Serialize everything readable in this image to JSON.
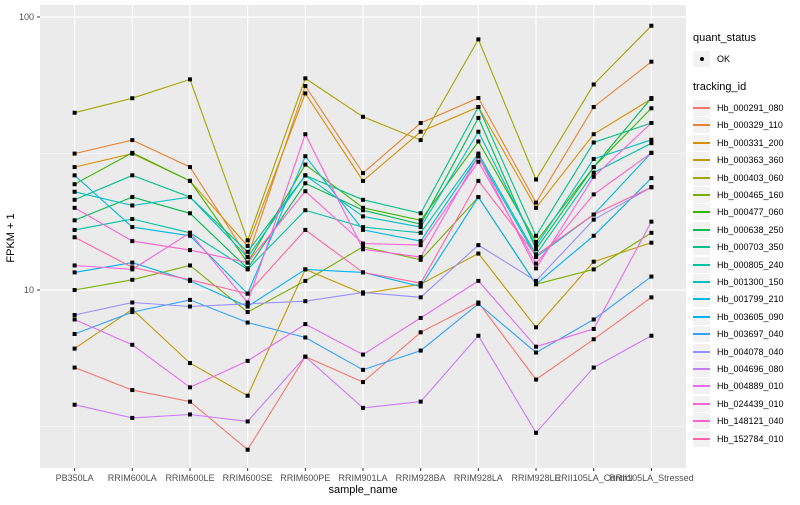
{
  "legend": {
    "quant_title": "quant_status",
    "quant_items": [
      {
        "label": "OK"
      }
    ],
    "tracking_title": "tracking_id"
  },
  "chart_data": {
    "type": "line",
    "title": "",
    "xlabel": "sample_name",
    "ylabel": "FPKM + 1",
    "y_scale": "log10",
    "ylim": [
      2.2,
      110
    ],
    "y_major_ticks": [
      100,
      10
    ],
    "y_minor_gridlines": [
      31.623,
      3.1623
    ],
    "grid": true,
    "legend_position": "right",
    "panel_background": "#EBEBEB",
    "gridline_color": "#FFFFFF",
    "tick_label_color": "#4D4D4D",
    "point_color": "#000000",
    "categories": [
      "PB350LA",
      "RRIM600LA",
      "RRIM600LE",
      "RRIM600SE",
      "RRIM600PE",
      "RRIM901LA",
      "RRIM928BA",
      "RRIM928LA",
      "RRIM928LE",
      "RRII105LA_Control",
      "RRII105LA_Stressed"
    ],
    "series": [
      {
        "name": "Hb_000291_080",
        "color": "#F8766D",
        "values": [
          5.2,
          4.3,
          3.9,
          2.6,
          5.7,
          4.6,
          7.0,
          9.0,
          4.7,
          6.6,
          9.4
        ]
      },
      {
        "name": "Hb_000329_110",
        "color": "#EA8331",
        "values": [
          31.6,
          35.4,
          28.2,
          13.2,
          55.9,
          26.8,
          40.9,
          50.5,
          20.9,
          46.8,
          68.6
        ]
      },
      {
        "name": "Hb_000331_200",
        "color": "#D89000",
        "values": [
          28.2,
          31.6,
          25.1,
          14.5,
          52.5,
          25.1,
          38.0,
          46.8,
          20.0,
          37.2,
          50.1
        ]
      },
      {
        "name": "Hb_000363_360",
        "color": "#C09B00",
        "values": [
          6.1,
          8.5,
          5.4,
          4.1,
          11.9,
          9.7,
          10.5,
          13.6,
          7.3,
          12.7,
          14.9
        ]
      },
      {
        "name": "Hb_000403_060",
        "color": "#A3A500",
        "values": [
          44.6,
          50.4,
          59.1,
          15.2,
          59.6,
          43.1,
          35.4,
          82.8,
          25.4,
          56.6,
          92.9
        ]
      },
      {
        "name": "Hb_000465_160",
        "color": "#7CAE00",
        "values": [
          10.0,
          10.9,
          12.3,
          8.3,
          10.8,
          14.4,
          12.9,
          21.9,
          10.5,
          11.9,
          16.2
        ]
      },
      {
        "name": "Hb_000477_060",
        "color": "#39B600",
        "values": [
          24.4,
          31.8,
          25.1,
          12.6,
          28.8,
          20.0,
          18.0,
          35.0,
          15.0,
          28.2,
          46.3
        ]
      },
      {
        "name": "Hb_000638_250",
        "color": "#00BB4E",
        "values": [
          18.0,
          21.9,
          19.1,
          12.0,
          24.6,
          19.6,
          17.4,
          42.7,
          14.1,
          28.2,
          50.5
        ]
      },
      {
        "name": "Hb_000703_350",
        "color": "#00C087",
        "values": [
          21.4,
          26.3,
          21.9,
          13.8,
          26.3,
          21.4,
          19.1,
          46.8,
          15.8,
          34.7,
          40.9
        ]
      },
      {
        "name": "Hb_000805_240",
        "color": "#00C1A3",
        "values": [
          16.6,
          18.2,
          16.2,
          11.9,
          19.6,
          17.0,
          16.2,
          31.6,
          13.5,
          26.9,
          34.5
        ]
      },
      {
        "name": "Hb_001300_150",
        "color": "#00BFC4",
        "values": [
          22.9,
          20.4,
          21.9,
          13.2,
          26.3,
          18.6,
          17.0,
          38.0,
          14.5,
          30.2,
          35.5
        ]
      },
      {
        "name": "Hb_001799_210",
        "color": "#00BAE0",
        "values": [
          26.3,
          17.0,
          15.8,
          9.7,
          30.9,
          16.6,
          15.1,
          30.9,
          13.2,
          18.9,
          31.8
        ]
      },
      {
        "name": "Hb_003605_090",
        "color": "#00B0F6",
        "values": [
          11.6,
          12.6,
          10.8,
          8.7,
          11.9,
          11.6,
          10.3,
          21.9,
          10.5,
          15.8,
          25.7
        ]
      },
      {
        "name": "Hb_003697_040",
        "color": "#35A2FF",
        "values": [
          6.9,
          8.3,
          9.2,
          7.6,
          6.7,
          5.1,
          6.0,
          8.9,
          5.9,
          7.8,
          11.2
        ]
      },
      {
        "name": "Hb_004078_040",
        "color": "#9590FF",
        "values": [
          8.1,
          9.0,
          8.7,
          8.9,
          9.1,
          9.8,
          9.4,
          14.6,
          10.8,
          18.1,
          23.8
        ]
      },
      {
        "name": "Hb_004696_080",
        "color": "#C77CFF",
        "values": [
          3.8,
          3.4,
          3.5,
          3.3,
          5.7,
          3.7,
          3.9,
          6.8,
          3.0,
          5.2,
          6.8
        ]
      },
      {
        "name": "Hb_004889_010",
        "color": "#E76BF3",
        "values": [
          7.8,
          6.3,
          4.4,
          5.5,
          7.5,
          5.8,
          7.9,
          10.8,
          6.2,
          7.2,
          17.8
        ]
      },
      {
        "name": "Hb_024439_010",
        "color": "#FA62DB",
        "values": [
          12.3,
          11.9,
          16.2,
          9.0,
          37.2,
          14.1,
          13.2,
          30.9,
          12.0,
          26.0,
          40.9
        ]
      },
      {
        "name": "Hb_148121_040",
        "color": "#FF61CC",
        "values": [
          20.0,
          15.1,
          14.0,
          12.6,
          23.0,
          14.8,
          14.6,
          29.5,
          12.5,
          22.4,
          31.8
        ]
      },
      {
        "name": "Hb_152784_010",
        "color": "#FF67A4",
        "values": [
          15.6,
          12.1,
          10.9,
          9.7,
          16.6,
          11.6,
          10.6,
          25.1,
          13.4,
          18.9,
          23.8
        ]
      }
    ]
  }
}
